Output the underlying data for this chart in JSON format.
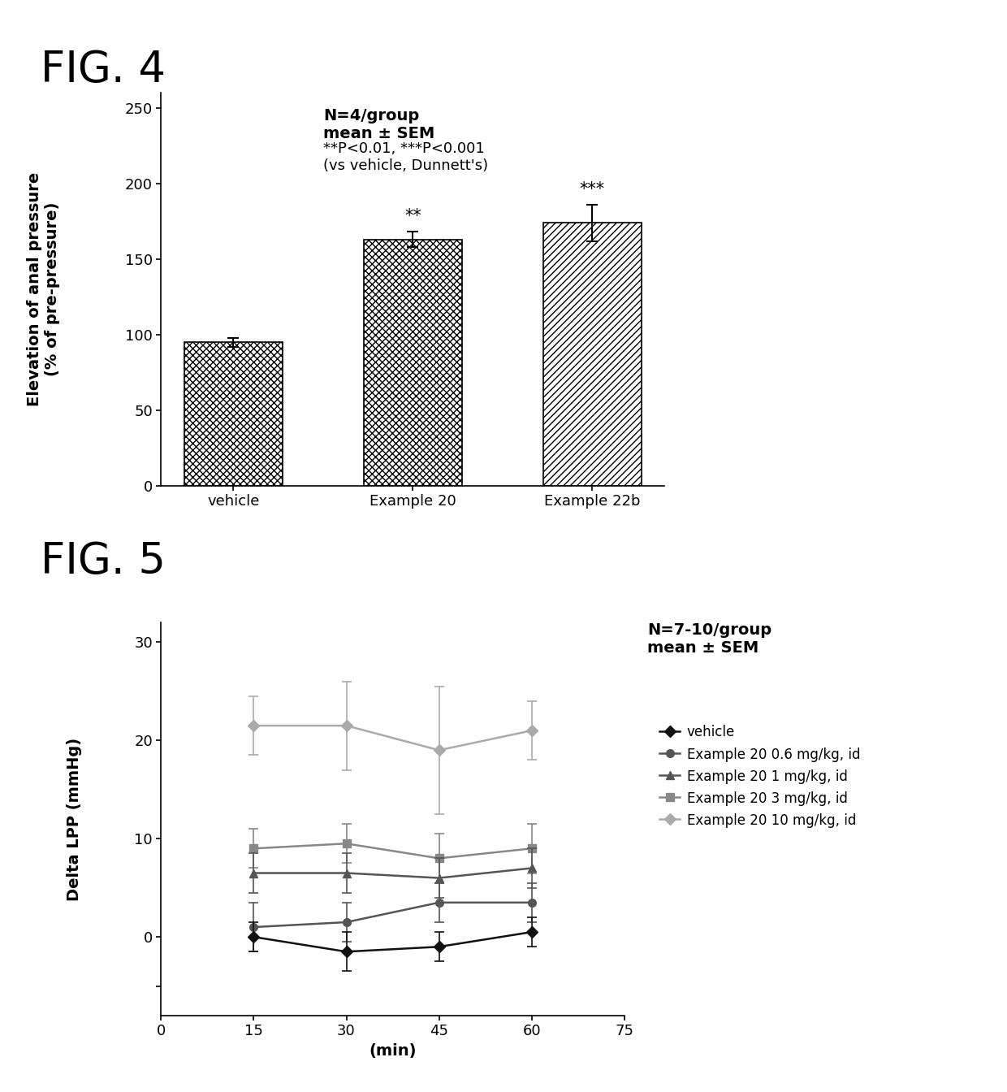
{
  "fig4": {
    "title": "FIG. 4",
    "categories": [
      "vehicle",
      "Example 20",
      "Example 22b"
    ],
    "values": [
      95,
      163,
      174
    ],
    "errors": [
      3,
      5,
      12
    ],
    "sig_labels": [
      "",
      "**",
      "***"
    ],
    "ylabel": "Elevation of anal pressure\n(% of pre-pressure)",
    "ylim": [
      0,
      260
    ],
    "yticks": [
      0,
      50,
      100,
      150,
      200,
      250
    ],
    "annotation_bold": "N=4/group\nmean ± SEM",
    "annotation_normal": "**P<0.01, ***P<0.001\n(vs vehicle, Dunnett's)",
    "bar_width": 0.55
  },
  "fig5": {
    "title": "FIG. 5",
    "xlabel": "(min)",
    "ylabel": "Delta LPP (mmHg)",
    "xlim": [
      0,
      75
    ],
    "ylim": [
      -8,
      32
    ],
    "xticks": [
      0,
      15,
      30,
      45,
      60,
      75
    ],
    "yticks": [
      -5,
      0,
      10,
      20,
      30
    ],
    "ytick_labels": [
      "",
      "0",
      "10",
      "20",
      "30"
    ],
    "annotation_bold": "N=7-10/group\nmean ± SEM",
    "series": [
      {
        "label": "vehicle",
        "x": [
          15,
          30,
          45,
          60
        ],
        "y": [
          0.0,
          -1.5,
          -1.0,
          0.5
        ],
        "yerr": [
          1.5,
          2.0,
          1.5,
          1.5
        ],
        "color": "#111111",
        "marker": "D",
        "marker_size": 7,
        "linewidth": 1.8,
        "zorder": 5
      },
      {
        "label": "Example 20 0.6 mg/kg, id",
        "x": [
          15,
          30,
          45,
          60
        ],
        "y": [
          1.0,
          1.5,
          3.5,
          3.5
        ],
        "yerr": [
          2.5,
          2.0,
          2.0,
          2.0
        ],
        "color": "#555555",
        "marker": "o",
        "marker_size": 7,
        "linewidth": 1.8,
        "zorder": 4
      },
      {
        "label": "Example 20 1 mg/kg, id",
        "x": [
          15,
          30,
          45,
          60
        ],
        "y": [
          6.5,
          6.5,
          6.0,
          7.0
        ],
        "yerr": [
          2.0,
          2.0,
          2.0,
          2.0
        ],
        "color": "#555555",
        "marker": "^",
        "marker_size": 7,
        "linewidth": 1.8,
        "zorder": 3
      },
      {
        "label": "Example 20 3 mg/kg, id",
        "x": [
          15,
          30,
          45,
          60
        ],
        "y": [
          9.0,
          9.5,
          8.0,
          9.0
        ],
        "yerr": [
          2.0,
          2.0,
          2.5,
          2.5
        ],
        "color": "#888888",
        "marker": "s",
        "marker_size": 7,
        "linewidth": 1.8,
        "zorder": 2
      },
      {
        "label": "Example 20 10 mg/kg, id",
        "x": [
          15,
          30,
          45,
          60
        ],
        "y": [
          21.5,
          21.5,
          19.0,
          21.0
        ],
        "yerr": [
          3.0,
          4.5,
          6.5,
          3.0
        ],
        "color": "#aaaaaa",
        "marker": "D",
        "marker_size": 7,
        "linewidth": 1.8,
        "zorder": 1
      }
    ]
  },
  "background_color": "#ffffff",
  "fig_title_fontsize": 38,
  "axis_label_fontsize": 14,
  "tick_fontsize": 13,
  "annotation_fontsize": 14,
  "sig_fontsize": 15
}
